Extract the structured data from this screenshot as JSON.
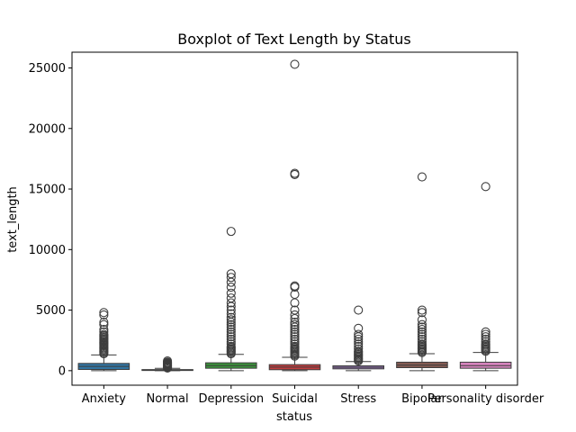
{
  "chart_data": {
    "type": "boxplot",
    "title": "Boxplot of Text Length by Status",
    "xlabel": "status",
    "ylabel": "text_length",
    "ylim": [
      -1200,
      26300
    ],
    "yticks": [
      0,
      5000,
      10000,
      15000,
      20000,
      25000
    ],
    "grid": false,
    "legend": "none",
    "categories": [
      "Anxiety",
      "Normal",
      "Depression",
      "Suicidal",
      "Stress",
      "Bipolar",
      "Personality disorder"
    ],
    "boxes": [
      {
        "category": "Anxiety",
        "color": "#1f77b4",
        "box_color": "#3274a1",
        "whisker_low": 0,
        "q1": 100,
        "median": 350,
        "q3": 600,
        "whisker_high": 1300,
        "outliers": [
          1400,
          1500,
          1600,
          1700,
          1800,
          1900,
          2000,
          2100,
          2200,
          2300,
          2400,
          2500,
          2600,
          2700,
          2800,
          2900,
          3000,
          3200,
          3400,
          3800,
          4000,
          4600,
          4800
        ]
      },
      {
        "category": "Normal",
        "color": "#ff7f0e",
        "box_color": "#e1812c",
        "whisker_low": 0,
        "q1": 20,
        "median": 50,
        "q3": 90,
        "whisker_high": 190,
        "outliers": [
          220,
          260,
          300,
          350,
          400,
          450,
          500,
          550,
          600,
          650,
          700,
          800
        ]
      },
      {
        "category": "Depression",
        "color": "#2ca02c",
        "box_color": "#3a923a",
        "whisker_low": 0,
        "q1": 200,
        "median": 420,
        "q3": 650,
        "whisker_high": 1350,
        "outliers": [
          1400,
          1500,
          1600,
          1700,
          1800,
          1900,
          2000,
          2200,
          2400,
          2600,
          2800,
          3000,
          3200,
          3400,
          3600,
          3800,
          4000,
          4200,
          4400,
          4700,
          5000,
          5300,
          5600,
          6000,
          6400,
          6900,
          7300,
          7700,
          8000,
          11500
        ]
      },
      {
        "category": "Suicidal",
        "color": "#8c564b",
        "box_color": "#c03d3e",
        "whisker_low": 0,
        "q1": 80,
        "median": 300,
        "q3": 500,
        "whisker_high": 1100,
        "outliers": [
          1200,
          1300,
          1400,
          1500,
          1600,
          1700,
          1800,
          1900,
          2000,
          2200,
          2400,
          2600,
          2800,
          3000,
          3200,
          3400,
          3600,
          3800,
          4000,
          4300,
          4600,
          5000,
          5600,
          6300,
          6900,
          7000,
          16200,
          16300,
          25300
        ]
      },
      {
        "category": "Stress",
        "color": "#9467bd",
        "box_color": "#9372b2",
        "whisker_low": 0,
        "q1": 150,
        "median": 280,
        "q3": 400,
        "whisker_high": 750,
        "outliers": [
          800,
          900,
          1000,
          1100,
          1200,
          1300,
          1400,
          1500,
          1600,
          1800,
          2000,
          2200,
          2400,
          2600,
          2800,
          3000,
          3500,
          5000
        ]
      },
      {
        "category": "Bipolar",
        "color": "#8c564b",
        "box_color": "#845b53",
        "whisker_low": 0,
        "q1": 250,
        "median": 450,
        "q3": 700,
        "whisker_high": 1400,
        "outliers": [
          1500,
          1600,
          1700,
          1800,
          1900,
          2000,
          2100,
          2200,
          2400,
          2600,
          2800,
          3000,
          3200,
          3400,
          3600,
          3800,
          4200,
          4800,
          5000,
          16000
        ]
      },
      {
        "category": "Personality disorder",
        "color": "#e377c2",
        "box_color": "#d684bd",
        "whisker_low": 0,
        "q1": 200,
        "median": 420,
        "q3": 700,
        "whisker_high": 1500,
        "outliers": [
          1600,
          1700,
          1800,
          1900,
          2000,
          2100,
          2200,
          2400,
          2600,
          2800,
          3000,
          3200,
          15200
        ]
      }
    ]
  }
}
